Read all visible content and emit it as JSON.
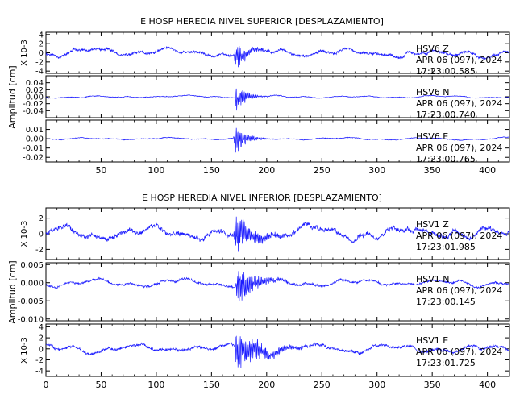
{
  "chart_data": [
    {
      "type": "line",
      "title": "E HOSP HEREDIA NIVEL SUPERIOR [DESPLAZAMIENTO]",
      "ylabel": "Amplitud [cm]",
      "xlabel": "",
      "xlim": [
        0,
        420
      ],
      "x_ticks": [
        50,
        100,
        150,
        200,
        250,
        300,
        350,
        400
      ],
      "x_tick_labels": [
        "50",
        "100",
        "150",
        "200",
        "250",
        "300",
        "350",
        "400"
      ],
      "traces": [
        {
          "station": "HSV6",
          "component": "Z",
          "date": "APR 06 (097), 2024",
          "time": "17:23:00.585",
          "scale_label": "X 10-3",
          "ylim": [
            -4.5,
            4.5
          ],
          "y_ticks": [
            -4,
            -2,
            0,
            2,
            4
          ],
          "y_tick_labels": [
            "-4",
            "-2",
            "0",
            "2",
            "4"
          ],
          "bg_amp": 0.6,
          "event_amp": 3.8,
          "event_start": 170,
          "decay": 9,
          "seed": 11
        },
        {
          "station": "HSV6",
          "component": "N",
          "date": "APR 06 (097), 2024",
          "time": "17:23:00.740",
          "scale_label": "",
          "ylim": [
            -0.06,
            0.06
          ],
          "y_ticks": [
            -0.04,
            -0.02,
            0.0,
            0.02,
            0.04
          ],
          "y_tick_labels": [
            "-0.04",
            "-0.02",
            "0.00",
            "0.02",
            "0.04"
          ],
          "bg_amp": 0.002,
          "event_amp": 0.05,
          "event_start": 171,
          "decay": 8,
          "seed": 23
        },
        {
          "station": "HSV6",
          "component": "E",
          "date": "APR 06 (097), 2024",
          "time": "17:23:00.765",
          "scale_label": "",
          "ylim": [
            -0.025,
            0.02
          ],
          "y_ticks": [
            -0.02,
            -0.01,
            0.0,
            0.01
          ],
          "y_tick_labels": [
            "-0.02",
            "-0.01",
            "0.00",
            "0.01"
          ],
          "bg_amp": 0.0008,
          "event_amp": 0.019,
          "event_start": 170,
          "decay": 9,
          "seed": 37
        }
      ]
    },
    {
      "type": "line",
      "title": "E HOSP HEREDIA NIVEL INFERIOR [DESPLAZAMIENTO]",
      "ylabel": "Amplitud [cm]",
      "xlabel": "",
      "xlim": [
        0,
        420
      ],
      "x_ticks": [
        0,
        50,
        100,
        150,
        200,
        250,
        300,
        350,
        400
      ],
      "x_tick_labels": [
        "0",
        "50",
        "100",
        "150",
        "200",
        "250",
        "300",
        "350",
        "400"
      ],
      "traces": [
        {
          "station": "HSV1",
          "component": "Z",
          "date": "APR 06 (097), 2024",
          "time": "17:23:01.985",
          "scale_label": "X 10-3",
          "ylim": [
            -3.3,
            3.3
          ],
          "y_ticks": [
            -2,
            0,
            2
          ],
          "y_tick_labels": [
            "-2",
            "0",
            "2"
          ],
          "bg_amp": 0.6,
          "event_amp": 2.9,
          "event_start": 170,
          "decay": 14,
          "seed": 51
        },
        {
          "station": "HSV1",
          "component": "N",
          "date": "APR 06 (097), 2024",
          "time": "17:23:00.145",
          "scale_label": "",
          "ylim": [
            -0.0105,
            0.0055
          ],
          "y_ticks": [
            -0.01,
            -0.005,
            0.0,
            0.005
          ],
          "y_tick_labels": [
            "-0.010",
            "-0.005",
            "0.000",
            "0.005"
          ],
          "bg_amp": 0.0006,
          "event_amp": 0.0055,
          "event_start": 172,
          "decay": 16,
          "seed": 67
        },
        {
          "station": "HSV1",
          "component": "E",
          "date": "APR 06 (097), 2024",
          "time": "17:23:01.725",
          "scale_label": "X 10-3",
          "ylim": [
            -5,
            4.5
          ],
          "y_ticks": [
            -4,
            -2,
            0,
            2,
            4
          ],
          "y_tick_labels": [
            "-4",
            "-2",
            "0",
            "2",
            "4"
          ],
          "bg_amp": 0.5,
          "event_amp": 4.3,
          "event_start": 171,
          "decay": 20,
          "seed": 83
        }
      ]
    }
  ],
  "line_color": "#1a1aff"
}
